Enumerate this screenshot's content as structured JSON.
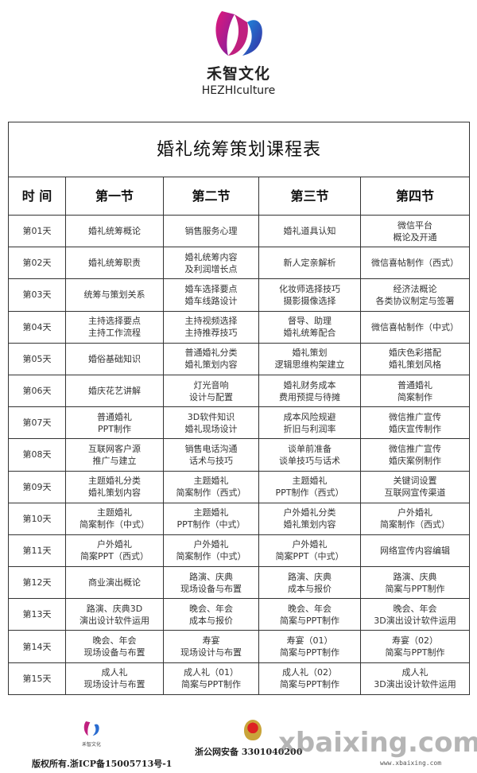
{
  "header": {
    "brand_cn": "禾智文化",
    "brand_en": "HEZHIculture"
  },
  "table": {
    "title": "婚礼统筹策划课程表",
    "columns": [
      "时  间",
      "第一节",
      "第二节",
      "第三节",
      "第四节"
    ],
    "rows": [
      {
        "day": "第01天",
        "cells": [
          [
            "婚礼统筹概论"
          ],
          [
            "销售服务心理"
          ],
          [
            "婚礼道具认知"
          ],
          [
            "微信平台",
            "概论及开通"
          ]
        ]
      },
      {
        "day": "第02天",
        "cells": [
          [
            "婚礼统筹职责"
          ],
          [
            "婚礼统筹内容",
            "及利润增长点"
          ],
          [
            "新人定亲解析"
          ],
          [
            "微信喜帖制作（西式）"
          ]
        ]
      },
      {
        "day": "第03天",
        "cells": [
          [
            "统筹与策划关系"
          ],
          [
            "婚车选择要点",
            "婚车线路设计"
          ],
          [
            "化妆师选择技巧",
            "摄影摄像选择"
          ],
          [
            "经济法概论",
            "各类协议制定与签署"
          ]
        ]
      },
      {
        "day": "第04天",
        "cells": [
          [
            "主持选择要点",
            "主持工作流程"
          ],
          [
            "主持视频选择",
            "主持推荐技巧"
          ],
          [
            "督导、助理",
            "婚礼统筹配合"
          ],
          [
            "微信喜帖制作（中式）"
          ]
        ]
      },
      {
        "day": "第05天",
        "cells": [
          [
            "婚俗基础知识"
          ],
          [
            "普通婚礼分类",
            "婚礼策划内容"
          ],
          [
            "婚礼策划",
            "逻辑思维构架建立"
          ],
          [
            "婚庆色彩搭配",
            "婚礼策划风格"
          ]
        ]
      },
      {
        "day": "第06天",
        "cells": [
          [
            "婚庆花艺讲解"
          ],
          [
            "灯光音响",
            "设计与配置"
          ],
          [
            "婚礼财务成本",
            "费用预提与待摊"
          ],
          [
            "普通婚礼",
            "简案制作"
          ]
        ]
      },
      {
        "day": "第07天",
        "cells": [
          [
            "普通婚礼",
            "PPT制作"
          ],
          [
            "3D软件知识",
            "婚礼现场设计"
          ],
          [
            "成本风险规避",
            "折旧与利润率"
          ],
          [
            "微信推广宣传",
            "婚庆宣传制作"
          ]
        ]
      },
      {
        "day": "第08天",
        "cells": [
          [
            "互联网客户源",
            "推广与建立"
          ],
          [
            "销售电话沟通",
            "话术与技巧"
          ],
          [
            "谈单前准备",
            "谈单技巧与话术"
          ],
          [
            "微信推广宣传",
            "婚庆案例制作"
          ]
        ]
      },
      {
        "day": "第09天",
        "cells": [
          [
            "主题婚礼分类",
            "婚礼策划内容"
          ],
          [
            "主题婚礼",
            "简案制作（西式）"
          ],
          [
            "主题婚礼",
            "PPT制作（西式）"
          ],
          [
            "关键词设置",
            "互联网宣传渠道"
          ]
        ]
      },
      {
        "day": "第10天",
        "cells": [
          [
            "主题婚礼",
            "简案制作（中式）"
          ],
          [
            "主题婚礼",
            "PPT制作（中式）"
          ],
          [
            "户外婚礼分类",
            "婚礼策划内容"
          ],
          [
            "户外婚礼",
            "简案制作（西式）"
          ]
        ]
      },
      {
        "day": "第11天",
        "cells": [
          [
            "户外婚礼",
            "简案PPT（西式）"
          ],
          [
            "户外婚礼",
            "简案制作（中式）"
          ],
          [
            "户外婚礼",
            "简案PPT（中式）"
          ],
          [
            "网络宣传内容编辑"
          ]
        ]
      },
      {
        "day": "第12天",
        "cells": [
          [
            "商业演出概论"
          ],
          [
            "路演、庆典",
            "现场设备与布置"
          ],
          [
            "路演、庆典",
            "成本与报价"
          ],
          [
            "路演、庆典",
            "简案与PPT制作"
          ]
        ]
      },
      {
        "day": "第13天",
        "cells": [
          [
            "路演、庆典3D",
            "演出设计软件运用"
          ],
          [
            "晚会、年会",
            "成本与报价"
          ],
          [
            "晚会、年会",
            "简案与PPT制作"
          ],
          [
            "晚会、年会",
            "3D演出设计软件运用"
          ]
        ]
      },
      {
        "day": "第14天",
        "cells": [
          [
            "晚会、年会",
            "现场设备与布置"
          ],
          [
            "寿宴",
            "现场设计与布置"
          ],
          [
            "寿宴（01）",
            "简案与PPT制作"
          ],
          [
            "寿宴（02）",
            "简案与PPT制作"
          ]
        ]
      },
      {
        "day": "第15天",
        "cells": [
          [
            "成人礼",
            "现场设计与布置"
          ],
          [
            "成人礼（01）",
            "简案与PPT制作"
          ],
          [
            "成人礼（02）",
            "简案与PPT制作"
          ],
          [
            "成人礼",
            "3D演出设计软件运用"
          ]
        ]
      }
    ]
  },
  "footer": {
    "copyright": "版权所有.浙ICP备15005713号-1",
    "police": "浙公网安备 3301040200",
    "small_logo_cn": "禾智文化",
    "watermark": "xbaixing.com",
    "watermark_url": "www.xbaixing.com"
  }
}
